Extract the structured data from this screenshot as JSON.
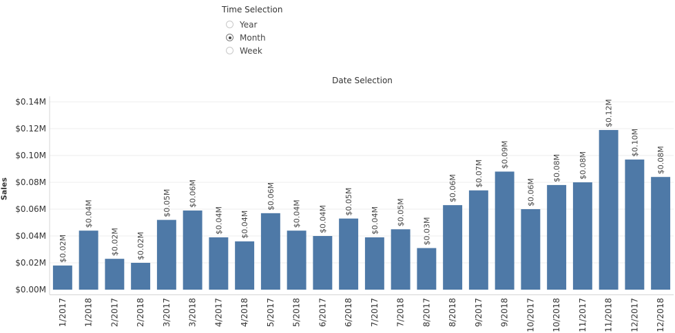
{
  "parameter": {
    "title": "Time Selection",
    "options": [
      {
        "label": "Year",
        "selected": false
      },
      {
        "label": "Month",
        "selected": true
      },
      {
        "label": "Week",
        "selected": false
      }
    ]
  },
  "chart_data": {
    "type": "bar",
    "title": "Date Selection",
    "xlabel": "",
    "ylabel": "Sales",
    "ylim": [
      0,
      0.14
    ],
    "yticks": [
      "$0.00M",
      "$0.02M",
      "$0.04M",
      "$0.06M",
      "$0.08M",
      "$0.10M",
      "$0.12M",
      "$0.14M"
    ],
    "grid": true,
    "bar_color": "#4e79a7",
    "categories": [
      "1/2017",
      "1/2018",
      "2/2017",
      "2/2018",
      "3/2017",
      "3/2018",
      "4/2017",
      "4/2018",
      "5/2017",
      "5/2018",
      "6/2017",
      "6/2018",
      "7/2017",
      "7/2018",
      "8/2017",
      "8/2018",
      "9/2017",
      "9/2018",
      "10/2017",
      "10/2018",
      "11/2017",
      "11/2018",
      "12/2017",
      "12/2018"
    ],
    "values": [
      0.018,
      0.044,
      0.023,
      0.02,
      0.052,
      0.059,
      0.039,
      0.036,
      0.057,
      0.044,
      0.04,
      0.053,
      0.039,
      0.045,
      0.031,
      0.063,
      0.074,
      0.088,
      0.06,
      0.078,
      0.08,
      0.119,
      0.097,
      0.084
    ],
    "data_labels": [
      "$0.02M",
      "$0.04M",
      "$0.02M",
      "$0.02M",
      "$0.05M",
      "$0.06M",
      "$0.04M",
      "$0.04M",
      "$0.06M",
      "$0.04M",
      "$0.04M",
      "$0.05M",
      "$0.04M",
      "$0.05M",
      "$0.03M",
      "$0.06M",
      "$0.07M",
      "$0.09M",
      "$0.06M",
      "$0.08M",
      "$0.08M",
      "$0.12M",
      "$0.10M",
      "$0.08M"
    ]
  }
}
